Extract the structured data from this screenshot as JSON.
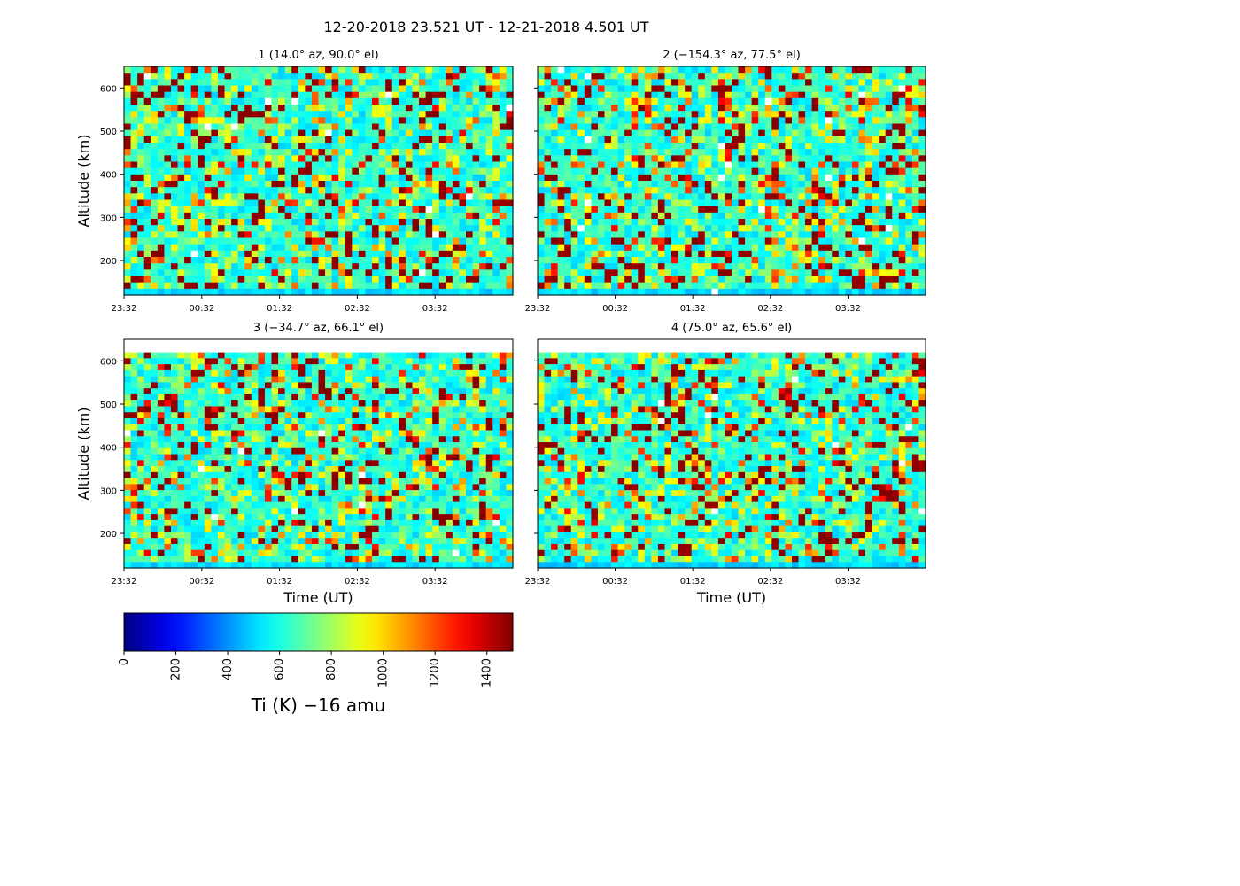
{
  "figure_title": "12-20-2018 23.521 UT - 12-21-2018 4.501 UT",
  "chart_data": [
    {
      "type": "heatmap",
      "title": "1 (14.0° az, 90.0° el)",
      "xlabel": "",
      "ylabel": "Altitude (km)",
      "xticks": [
        "23:32",
        "00:32",
        "01:32",
        "02:32",
        "03:32"
      ],
      "yticks": [
        200,
        300,
        400,
        500,
        600
      ],
      "ylim": [
        120,
        650
      ],
      "x_range_hours": [
        0,
        5
      ],
      "y_data_range_km": [
        120,
        650
      ],
      "value_range": [
        0,
        1500
      ],
      "colormap": "jet",
      "seed": 11
    },
    {
      "type": "heatmap",
      "title": "2 (−154.3° az, 77.5° el)",
      "xlabel": "",
      "ylabel": "",
      "xticks": [
        "23:32",
        "00:32",
        "01:32",
        "02:32",
        "03:32"
      ],
      "yticks": [],
      "ylim": [
        120,
        650
      ],
      "x_range_hours": [
        0,
        5
      ],
      "y_data_range_km": [
        120,
        650
      ],
      "value_range": [
        0,
        1500
      ],
      "colormap": "jet",
      "seed": 23
    },
    {
      "type": "heatmap",
      "title": "3 (−34.7° az, 66.1° el)",
      "xlabel": "Time (UT)",
      "ylabel": "Altitude (km)",
      "xticks": [
        "23:32",
        "00:32",
        "01:32",
        "02:32",
        "03:32"
      ],
      "yticks": [
        200,
        300,
        400,
        500,
        600
      ],
      "ylim": [
        120,
        650
      ],
      "x_range_hours": [
        0,
        5
      ],
      "y_data_range_km": [
        120,
        620
      ],
      "value_range": [
        0,
        1500
      ],
      "colormap": "jet",
      "seed": 37
    },
    {
      "type": "heatmap",
      "title": "4 (75.0° az, 65.6° el)",
      "xlabel": "Time (UT)",
      "ylabel": "",
      "xticks": [
        "23:32",
        "00:32",
        "01:32",
        "02:32",
        "03:32"
      ],
      "yticks": [],
      "ylim": [
        120,
        650
      ],
      "x_range_hours": [
        0,
        5
      ],
      "y_data_range_km": [
        120,
        620
      ],
      "value_range": [
        0,
        1500
      ],
      "colormap": "jet",
      "seed": 53
    }
  ],
  "colorbar": {
    "label": "Ti (K)  −16 amu",
    "ticks": [
      0,
      200,
      400,
      600,
      800,
      1000,
      1200,
      1400
    ],
    "range": [
      0,
      1500
    ],
    "colormap": "jet"
  }
}
